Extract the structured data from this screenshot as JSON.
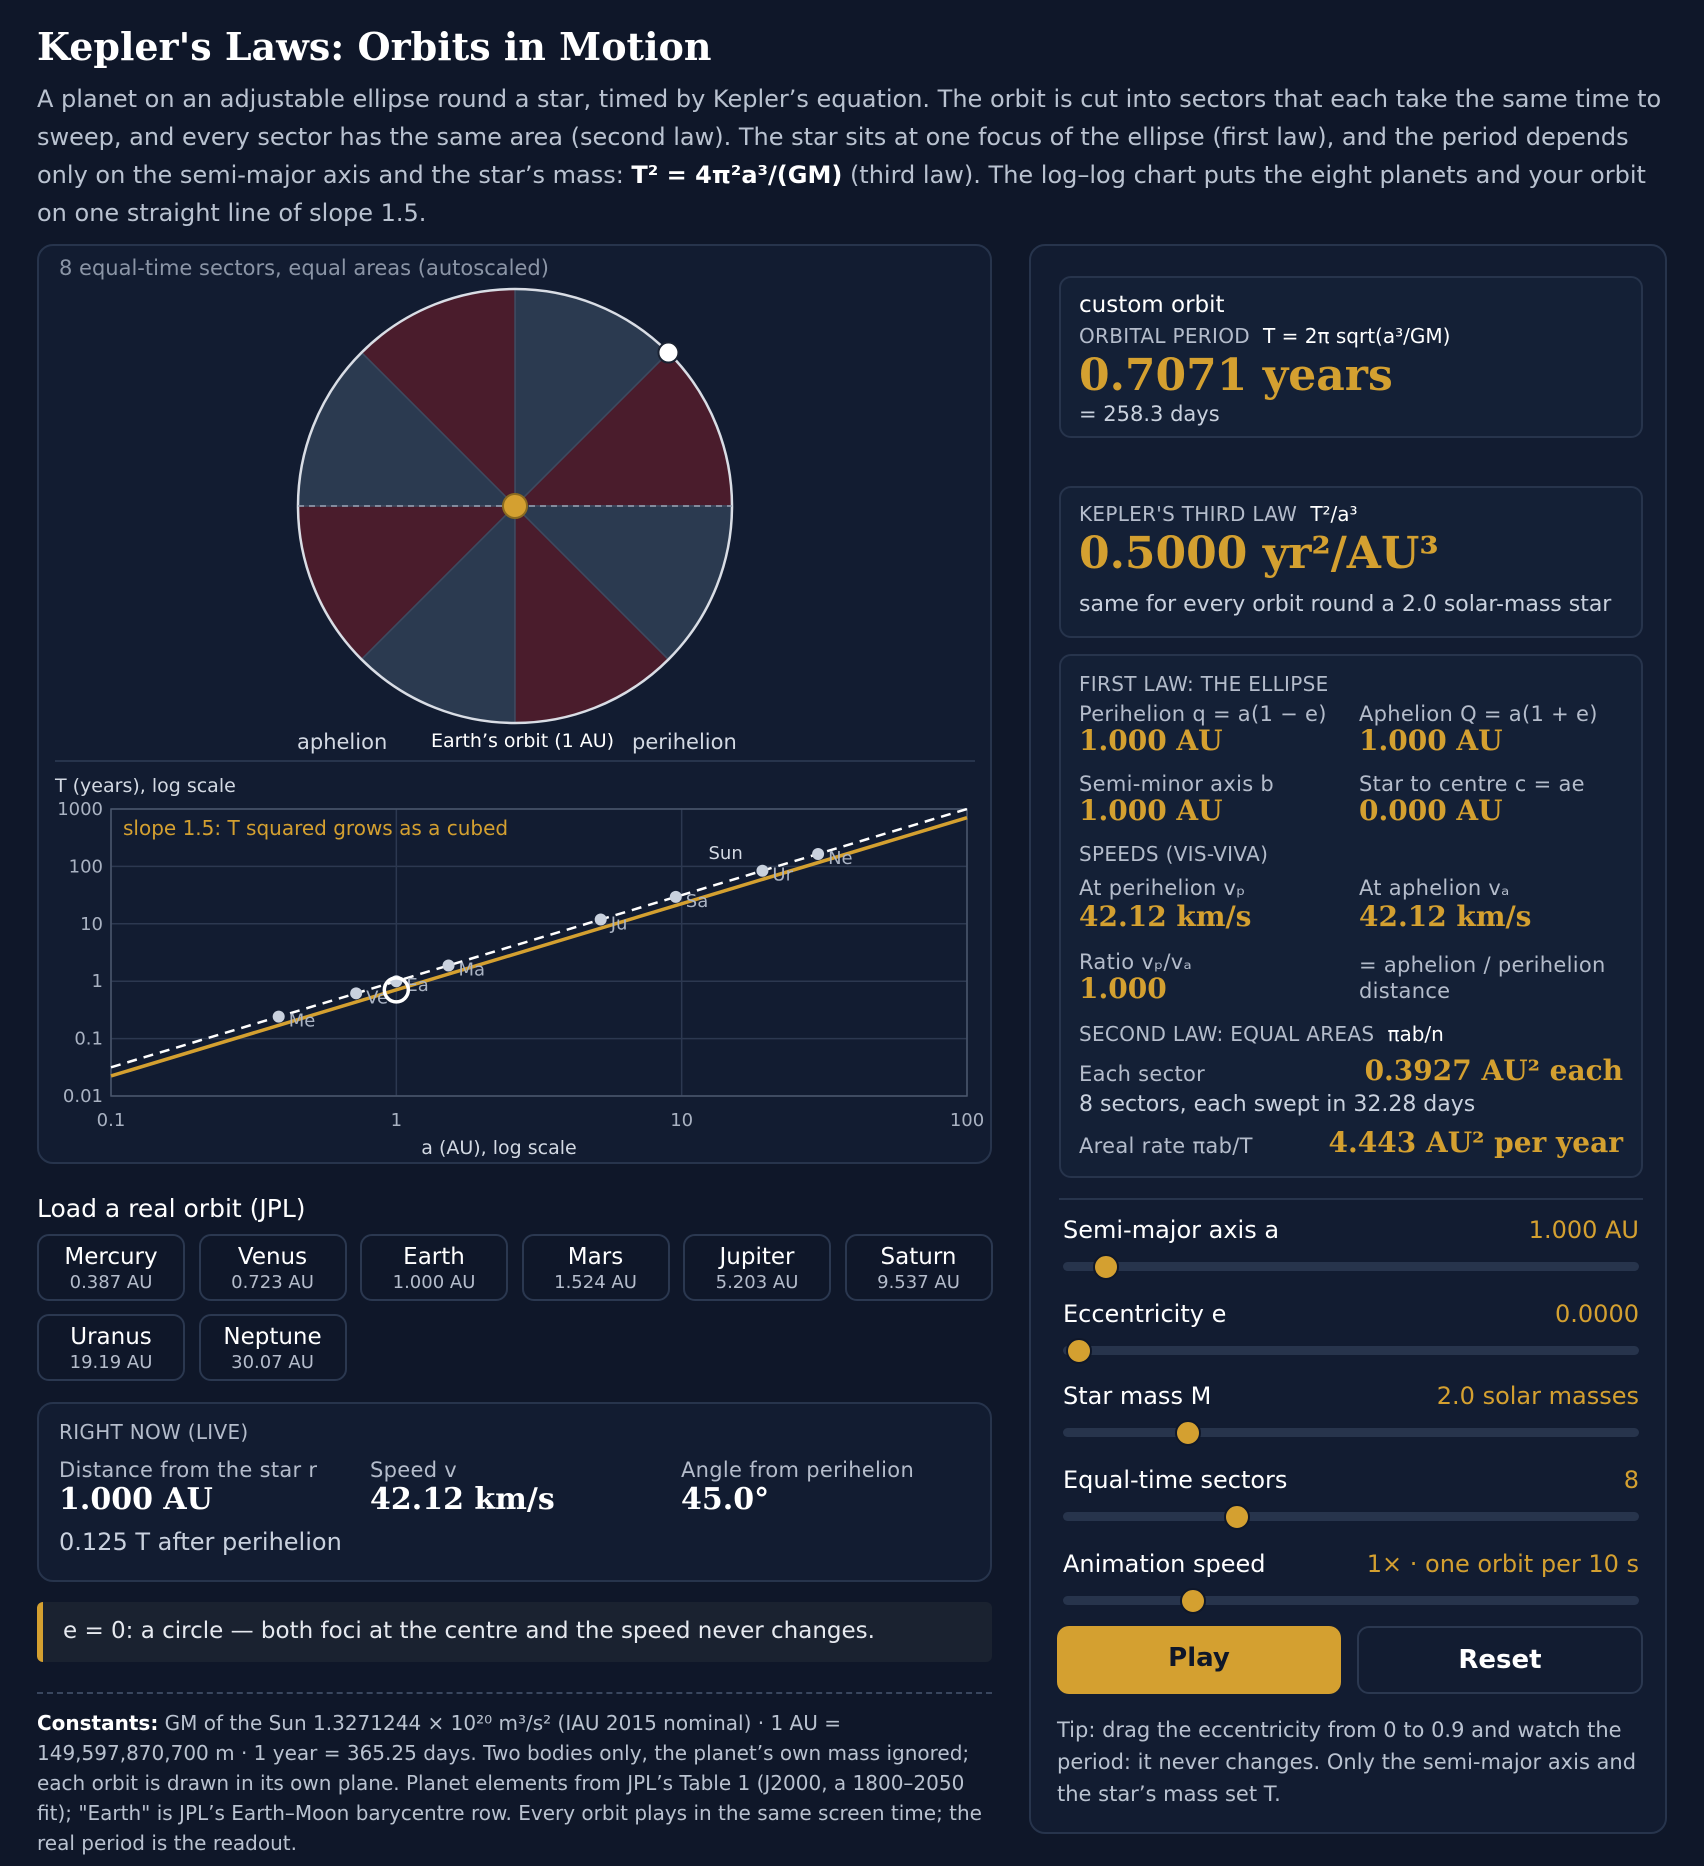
{
  "title": "Kepler's Laws: Orbits in Motion",
  "intro": {
    "p1": "A planet on an adjustable ellipse round a star, timed by Kepler’s equation. The orbit is cut into sectors that each take the same time to sweep, and every sector has the same area (second law). The star sits at one focus of the ellipse (first law), and the period depends only on the semi-major axis and the star’s mass: ",
    "formula": "T² = 4π²a³/(GM)",
    "p2": " (third law). The log–log chart puts the eight planets and your orbit on one straight line of slope 1.5."
  },
  "orbit": {
    "caption": "8 equal-time sectors, equal areas (autoscaled)",
    "sectors": 8,
    "planet_angle_deg": 45,
    "aphelion_label": "aphelion",
    "earth_label": "Earth’s orbit (1 AU)",
    "perihelion_label": "perihelion",
    "colors": {
      "sector_a": "#2b3a50",
      "sector_b": "#4a1c2c",
      "star": "#d4a030",
      "planet": "#ffffff"
    }
  },
  "chart_data": {
    "type": "scatter",
    "title": "",
    "xlabel": "a (AU), log scale",
    "ylabel": "T (years), log scale",
    "xscale": "log",
    "yscale": "log",
    "xlim": [
      0.1,
      100
    ],
    "ylim": [
      0.01,
      1000
    ],
    "xticks": [
      "0.1",
      "1",
      "10",
      "100"
    ],
    "yticks": [
      "0.01",
      "0.1",
      "1",
      "10",
      "100",
      "1000"
    ],
    "annotation": "slope 1.5: T squared grows as a cubed",
    "planets": [
      {
        "label": "Me",
        "a": 0.387,
        "T": 0.241
      },
      {
        "label": "Ve",
        "a": 0.723,
        "T": 0.615
      },
      {
        "label": "Ea",
        "a": 1.0,
        "T": 1.0
      },
      {
        "label": "Ma",
        "a": 1.524,
        "T": 1.881
      },
      {
        "label": "Ju",
        "a": 5.203,
        "T": 11.86
      },
      {
        "label": "Sa",
        "a": 9.537,
        "T": 29.45
      },
      {
        "label": "Ur",
        "a": 19.19,
        "T": 84.0
      },
      {
        "label": "Ne",
        "a": 30.07,
        "T": 164.8
      }
    ],
    "sun_line_label": "Sun",
    "custom_orbit": {
      "a": 1.0,
      "T": 0.7071
    },
    "colors": {
      "line": "#d4a030",
      "sun_line": "#ffffff",
      "points": "#c9d1de"
    }
  },
  "jpl": {
    "title": "Load a real orbit (JPL)",
    "planets": [
      {
        "name": "Mercury",
        "a": "0.387 AU"
      },
      {
        "name": "Venus",
        "a": "0.723 AU"
      },
      {
        "name": "Earth",
        "a": "1.000 AU"
      },
      {
        "name": "Mars",
        "a": "1.524 AU"
      },
      {
        "name": "Jupiter",
        "a": "5.203 AU"
      },
      {
        "name": "Saturn",
        "a": "9.537 AU"
      },
      {
        "name": "Uranus",
        "a": "19.19 AU"
      },
      {
        "name": "Neptune",
        "a": "30.07 AU"
      }
    ]
  },
  "live": {
    "heading": "RIGHT NOW (LIVE)",
    "dist_label": "Distance from the star r",
    "dist_value": "1.000 AU",
    "speed_label": "Speed v",
    "speed_value": "42.12 km/s",
    "angle_label": "Angle from perihelion",
    "angle_value": "45.0°",
    "time": "0.125 T after perihelion"
  },
  "note": "e = 0: a circle — both foci at the centre and the speed never changes.",
  "constants": {
    "bold": "Constants:",
    "text": " GM of the Sun 1.3271244 × 10²⁰ m³/s² (IAU 2015 nominal) · 1 AU = 149,597,870,700 m · 1 year = 365.25 days. Two bodies only, the planet’s own mass ignored; each orbit is drawn in its own plane. Planet elements from JPL’s Table 1 (J2000, a 1800–2050 fit); \"Earth\" is JPL’s Earth–Moon barycentre row. Every orbit plays in the same screen time; the real period is the readout."
  },
  "period_card": {
    "name": "custom orbit",
    "label": "ORBITAL PERIOD",
    "formula": "T = 2π sqrt(a³/GM)",
    "value": "0.7071 years",
    "days": "= 258.3 days"
  },
  "third_law_card": {
    "label": "KEPLER'S THIRD LAW",
    "formula": "T²/a³",
    "value": "0.5000 yr²/AU³",
    "sub": "same for every orbit round a 2.0 solar-mass star"
  },
  "ellipse_card": {
    "heading": "FIRST LAW: THE ELLIPSE",
    "peri_label": "Perihelion q = a(1 − e)",
    "peri_value": "1.000 AU",
    "aph_label": "Aphelion Q = a(1 + e)",
    "aph_value": "1.000 AU",
    "b_label": "Semi-minor axis b",
    "b_value": "1.000 AU",
    "c_label": "Star to centre c = ae",
    "c_value": "0.000 AU",
    "speeds_heading": "SPEEDS (VIS-VIVA)",
    "vp_label": "At perihelion vₚ",
    "vp_value": "42.12 km/s",
    "va_label": "At aphelion vₐ",
    "va_value": "42.12 km/s",
    "ratio_label": "Ratio vₚ/vₐ",
    "ratio_value": "1.000",
    "ratio_note": "= aphelion / perihelion distance",
    "second_heading": "SECOND LAW: EQUAL AREAS",
    "second_formula": "πab/n",
    "sector_label": "Each sector",
    "sector_value": "0.3927 AU² each",
    "sectors_note": "8 sectors, each swept in 32.28 days",
    "areal_label": "Areal rate  πab/T",
    "areal_value": "4.443 AU² per year"
  },
  "sliders": [
    {
      "label": "Semi-major axis a",
      "value": "1.000 AU",
      "fraction": 0.05
    },
    {
      "label": "Eccentricity e",
      "value": "0.0000",
      "fraction": 0.0
    },
    {
      "label": "Star mass M",
      "value": "2.0 solar masses",
      "fraction": 0.2
    },
    {
      "label": "Equal-time sectors",
      "value": "8",
      "fraction": 0.29
    },
    {
      "label": "Animation speed",
      "value": "1× · one orbit per 10 s",
      "fraction": 0.21
    }
  ],
  "buttons": {
    "play": "Play",
    "reset": "Reset"
  },
  "tip": "Tip: drag the eccentricity from 0 to 0.9 and watch the period: it never changes. Only the semi-major axis and the star’s mass set T."
}
